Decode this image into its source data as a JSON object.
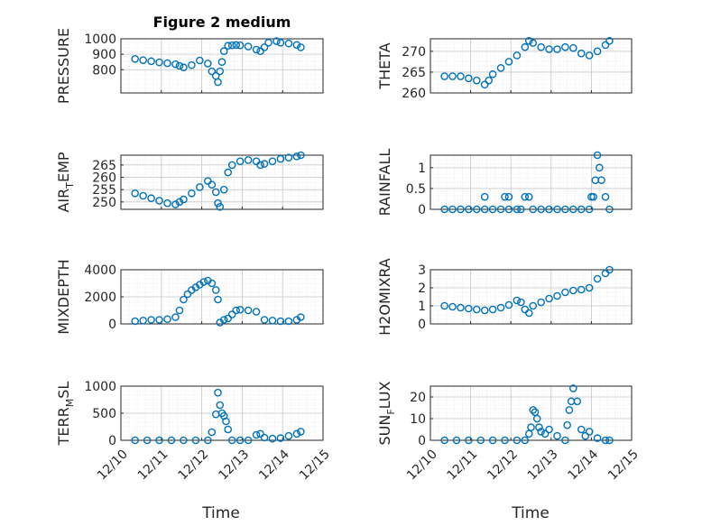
{
  "figure": {
    "title": "Figure 2 medium",
    "xlabel": "Time",
    "marker_color": "#0072BD"
  },
  "chart_data": [
    {
      "type": "scatter",
      "ylabel": "PRESSURE",
      "ylim": [
        650,
        1000
      ],
      "yticks": [
        800,
        900,
        1000
      ],
      "xlim": [
        0,
        5
      ],
      "grid": true,
      "x": [
        0.0,
        0.2,
        0.4,
        0.6,
        0.8,
        1.0,
        1.1,
        1.2,
        1.4,
        1.6,
        1.8,
        1.9,
        2.0,
        2.05,
        2.1,
        2.15,
        2.2,
        2.3,
        2.4,
        2.5,
        2.6,
        2.8,
        3.0,
        3.1,
        3.2,
        3.3,
        3.5,
        3.6,
        3.8,
        4.0,
        4.1
      ],
      "y": [
        870,
        862,
        855,
        848,
        842,
        836,
        825,
        815,
        830,
        860,
        840,
        790,
        760,
        720,
        790,
        850,
        920,
        955,
        958,
        960,
        958,
        950,
        930,
        920,
        945,
        975,
        985,
        975,
        970,
        960,
        945
      ]
    },
    {
      "type": "scatter",
      "ylabel": "THETA",
      "ylim": [
        260,
        273
      ],
      "yticks": [
        260,
        265,
        270
      ],
      "xlim": [
        0,
        5
      ],
      "grid": true,
      "x": [
        0.0,
        0.2,
        0.4,
        0.6,
        0.8,
        1.0,
        1.1,
        1.2,
        1.4,
        1.6,
        1.8,
        2.0,
        2.1,
        2.2,
        2.4,
        2.6,
        2.8,
        3.0,
        3.2,
        3.4,
        3.6,
        3.8,
        4.0,
        4.1
      ],
      "y": [
        264,
        264,
        264,
        263.5,
        263,
        262,
        263,
        264.5,
        266,
        267.5,
        269,
        271,
        272.5,
        272,
        271,
        270.5,
        270.5,
        271,
        270.8,
        269.5,
        269,
        270,
        271.5,
        272.5
      ]
    },
    {
      "type": "scatter",
      "ylabel": "AIR_TEMP",
      "ylabel_main": "AIR",
      "ylabel_sub": "T",
      "ylabel_rest": "EMP",
      "ylim": [
        247,
        269
      ],
      "yticks": [
        250,
        255,
        260,
        265
      ],
      "xlim": [
        0,
        5
      ],
      "grid": true,
      "x": [
        0.0,
        0.2,
        0.4,
        0.6,
        0.8,
        1.0,
        1.1,
        1.2,
        1.4,
        1.6,
        1.8,
        1.9,
        2.0,
        2.05,
        2.1,
        2.2,
        2.3,
        2.4,
        2.6,
        2.8,
        3.0,
        3.1,
        3.2,
        3.4,
        3.6,
        3.8,
        4.0,
        4.1
      ],
      "y": [
        253.5,
        252.5,
        251.5,
        250.5,
        249.5,
        249,
        250,
        251,
        253.5,
        256,
        258.5,
        257,
        254,
        249.5,
        248,
        255,
        262,
        265,
        266.5,
        267,
        266.5,
        265,
        265.5,
        266.5,
        267.5,
        268,
        268.5,
        269
      ]
    },
    {
      "type": "scatter",
      "ylabel": "RAINFALL",
      "ylim": [
        0,
        1.3
      ],
      "yticks": [
        0,
        0.5,
        1
      ],
      "xlim": [
        0,
        5
      ],
      "grid": true,
      "x": [
        0.0,
        0.2,
        0.4,
        0.6,
        0.8,
        1.0,
        1.2,
        1.4,
        1.6,
        1.8,
        1.9,
        2.0,
        2.1,
        2.2,
        2.4,
        2.6,
        2.8,
        3.0,
        3.2,
        3.4,
        3.6,
        3.7,
        3.75,
        3.8,
        3.85,
        3.9,
        4.0,
        4.1,
        1.5,
        1.6,
        1.0,
        3.65
      ],
      "y": [
        0,
        0,
        0,
        0,
        0,
        0,
        0,
        0,
        0,
        0,
        0,
        0.3,
        0.3,
        0,
        0,
        0,
        0,
        0,
        0,
        0,
        0,
        0.3,
        0.7,
        1.3,
        1.0,
        0.7,
        0.3,
        0,
        0.3,
        0.3,
        0.3,
        0.3
      ]
    },
    {
      "type": "scatter",
      "ylabel": "MIXDEPTH",
      "ylim": [
        0,
        4000
      ],
      "yticks": [
        0,
        2000,
        4000
      ],
      "xlim": [
        0,
        5
      ],
      "grid": true,
      "x": [
        0.0,
        0.2,
        0.4,
        0.6,
        0.8,
        1.0,
        1.1,
        1.2,
        1.3,
        1.4,
        1.5,
        1.6,
        1.7,
        1.8,
        1.9,
        2.0,
        2.05,
        2.1,
        2.2,
        2.3,
        2.4,
        2.5,
        2.6,
        2.8,
        3.0,
        3.2,
        3.4,
        3.6,
        3.8,
        4.0,
        4.1
      ],
      "y": [
        200,
        250,
        300,
        300,
        350,
        500,
        1000,
        1800,
        2200,
        2500,
        2700,
        2900,
        3100,
        3200,
        3000,
        2500,
        1800,
        100,
        300,
        400,
        700,
        1000,
        1050,
        1000,
        900,
        300,
        250,
        200,
        200,
        300,
        500
      ]
    },
    {
      "type": "scatter",
      "ylabel": "H2OMIXRA",
      "ylim": [
        0,
        3
      ],
      "yticks": [
        0,
        1,
        2,
        3
      ],
      "xlim": [
        0,
        5
      ],
      "grid": true,
      "x": [
        0.0,
        0.2,
        0.4,
        0.6,
        0.8,
        1.0,
        1.2,
        1.4,
        1.6,
        1.8,
        1.9,
        2.0,
        2.1,
        2.2,
        2.4,
        2.6,
        2.8,
        3.0,
        3.2,
        3.4,
        3.6,
        3.8,
        4.0,
        4.1
      ],
      "y": [
        1.0,
        0.95,
        0.9,
        0.85,
        0.8,
        0.75,
        0.8,
        0.9,
        1.05,
        1.3,
        1.2,
        0.8,
        0.6,
        1.0,
        1.2,
        1.4,
        1.55,
        1.75,
        1.85,
        1.9,
        2.0,
        2.5,
        2.8,
        3.0
      ]
    },
    {
      "type": "scatter",
      "ylabel": "TERR_MSL",
      "ylabel_main": "TERR",
      "ylabel_sub": "M",
      "ylabel_rest": "SL",
      "ylim": [
        0,
        1000
      ],
      "yticks": [
        0,
        500,
        1000
      ],
      "xlim": [
        0,
        5
      ],
      "grid": true,
      "x": [
        0.0,
        0.3,
        0.6,
        0.9,
        1.2,
        1.5,
        1.8,
        1.9,
        2.0,
        2.05,
        2.1,
        2.15,
        2.2,
        2.25,
        2.3,
        2.4,
        2.6,
        2.8,
        3.0,
        3.1,
        3.2,
        3.4,
        3.6,
        3.8,
        4.0,
        4.1
      ],
      "y": [
        0,
        0,
        0,
        0,
        0,
        0,
        0,
        150,
        480,
        880,
        650,
        500,
        450,
        350,
        200,
        0,
        0,
        0,
        100,
        120,
        50,
        30,
        40,
        80,
        120,
        160
      ]
    },
    {
      "type": "scatter",
      "ylabel": "SUN_FLUX",
      "ylabel_main": "SUN",
      "ylabel_sub": "F",
      "ylabel_rest": "LUX",
      "ylim": [
        0,
        25
      ],
      "yticks": [
        0,
        10,
        20
      ],
      "xlim": [
        0,
        5
      ],
      "grid": true,
      "x": [
        0.0,
        0.3,
        0.6,
        0.9,
        1.2,
        1.5,
        1.8,
        2.0,
        2.1,
        2.15,
        2.2,
        2.25,
        2.3,
        2.35,
        2.4,
        2.5,
        2.6,
        2.8,
        3.0,
        3.05,
        3.1,
        3.15,
        3.2,
        3.3,
        3.4,
        3.5,
        3.6,
        3.8,
        4.0,
        4.1
      ],
      "y": [
        0,
        0,
        0,
        0,
        0,
        0,
        0,
        0,
        3,
        6,
        14,
        13,
        10,
        6,
        4,
        3,
        5,
        2,
        0,
        7,
        14,
        18,
        24,
        18,
        5,
        2,
        4,
        1,
        0,
        0
      ]
    }
  ],
  "xticks": [
    "12/10",
    "12/11",
    "12/12",
    "12/13",
    "12/14",
    "12/15"
  ]
}
